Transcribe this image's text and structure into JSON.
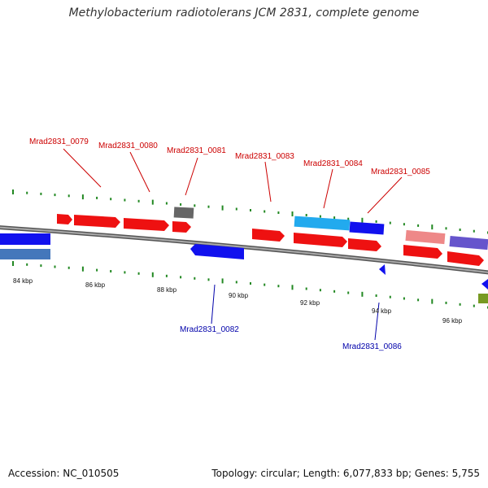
{
  "title": "Methylobacterium radiotolerans JCM 2831, complete genome",
  "footer": {
    "accession": "Accession: NC_010505",
    "summary": "Topology: circular; Length: 6,077,833 bp; Genes: 5,755"
  },
  "colors": {
    "forward": "#ee1111",
    "reverse": "#1111ee",
    "backbone": "#888888",
    "tick": "#228822",
    "label_forward": "#cc0000",
    "label_reverse": "#0000aa"
  },
  "position_ticks": [
    "84 kbp",
    "86 kbp",
    "88 kbp",
    "90 kbp",
    "92 kbp",
    "94 kbp",
    "96 kbp"
  ],
  "gene_labels": {
    "forward": [
      "Mrad2831_0079",
      "Mrad2831_0080",
      "Mrad2831_0081",
      "Mrad2831_0083",
      "Mrad2831_0084",
      "Mrad2831_0085"
    ],
    "reverse": [
      "Mrad2831_0082",
      "Mrad2831_0086"
    ]
  }
}
